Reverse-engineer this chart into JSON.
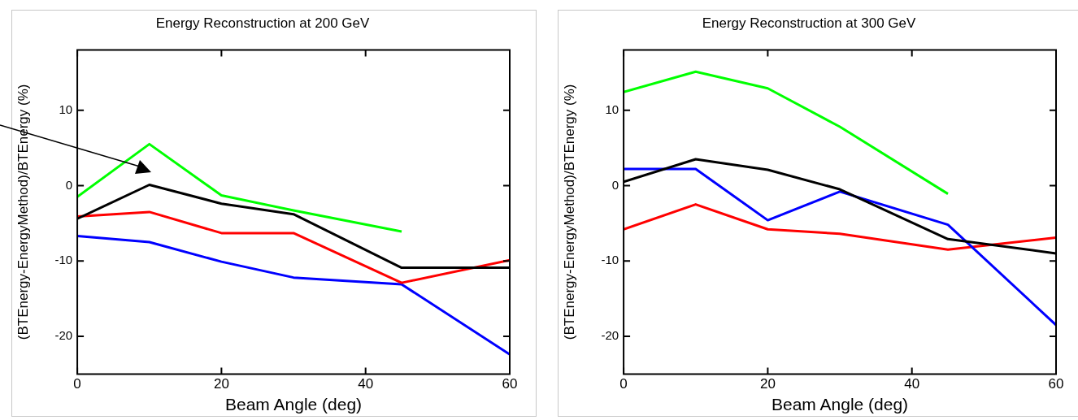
{
  "chart_data": [
    {
      "type": "line",
      "title": "Energy Reconstruction at 200 GeV",
      "xlabel": "Beam Angle (deg)",
      "ylabel": "(BTEnergy-EnergyMethod)/BTEnergy (%)",
      "x": [
        0,
        10,
        20,
        30,
        45,
        60
      ],
      "xlim": [
        0,
        60
      ],
      "xticks": [
        0,
        20,
        40,
        60
      ],
      "ylim": [
        -25,
        18
      ],
      "yticks": [
        -20,
        -10,
        0,
        10
      ],
      "grid": false,
      "legend": false,
      "marker": "none",
      "series": [
        {
          "color": "#00ff00",
          "values": [
            -1.5,
            5.5,
            -1.3,
            -3.3,
            -6.1,
            null
          ]
        },
        {
          "color": "#000000",
          "values": [
            -4.4,
            0.1,
            -2.4,
            -3.8,
            -10.9,
            -10.9
          ]
        },
        {
          "color": "#ff0000",
          "values": [
            -4.1,
            -3.5,
            -6.3,
            -6.3,
            -12.9,
            -9.9
          ]
        },
        {
          "color": "#0000ff",
          "values": [
            -6.7,
            -7.5,
            -10.1,
            -12.2,
            -13.1,
            -22.4
          ]
        }
      ]
    },
    {
      "type": "line",
      "title": "Energy Reconstruction at 300 GeV",
      "xlabel": "Beam Angle (deg)",
      "ylabel": "(BTEnergy-EnergyMethod)/BTEnergy (%)",
      "x": [
        0,
        10,
        20,
        30,
        45,
        60
      ],
      "xlim": [
        0,
        60
      ],
      "xticks": [
        0,
        20,
        40,
        60
      ],
      "ylim": [
        -25,
        18
      ],
      "yticks": [
        -20,
        -10,
        0,
        10
      ],
      "grid": false,
      "legend": false,
      "marker": "none",
      "series": [
        {
          "color": "#00ff00",
          "values": [
            12.4,
            15.1,
            12.9,
            7.8,
            -1.1,
            null
          ]
        },
        {
          "color": "#000000",
          "values": [
            0.5,
            3.5,
            2.1,
            -0.5,
            -7.1,
            -9.0
          ]
        },
        {
          "color": "#0000ff",
          "values": [
            2.2,
            2.2,
            -4.6,
            -0.8,
            -5.2,
            -18.5
          ]
        },
        {
          "color": "#ff0000",
          "values": [
            -5.8,
            -2.5,
            -5.8,
            -6.4,
            -8.5,
            -6.9
          ]
        }
      ]
    }
  ]
}
